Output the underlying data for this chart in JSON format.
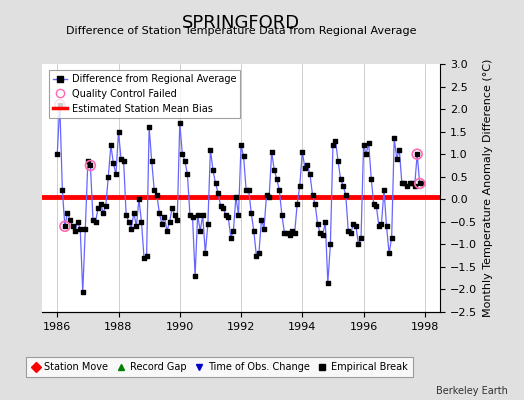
{
  "title": "SPRINGFORD",
  "subtitle": "Difference of Station Temperature Data from Regional Average",
  "ylabel": "Monthly Temperature Anomaly Difference (°C)",
  "xlabel_ticks": [
    1986,
    1988,
    1990,
    1992,
    1994,
    1996,
    1998
  ],
  "ylim": [
    -2.5,
    3.0
  ],
  "xlim": [
    1985.5,
    1998.5
  ],
  "bias": 0.05,
  "bias_color": "#ff0000",
  "line_color": "#6666ff",
  "marker_color": "#000000",
  "bg_color": "#e0e0e0",
  "plot_bg_color": "#ffffff",
  "grid_color": "#bbbbbb",
  "yticks": [
    -2.5,
    -2,
    -1.5,
    -1,
    -0.5,
    0,
    0.5,
    1,
    1.5,
    2,
    2.5,
    3
  ],
  "watermark": "Berkeley Earth",
  "data_x": [
    1986.0,
    1986.083,
    1986.167,
    1986.25,
    1986.333,
    1986.417,
    1986.5,
    1986.583,
    1986.667,
    1986.75,
    1986.833,
    1986.917,
    1987.0,
    1987.083,
    1987.167,
    1987.25,
    1987.333,
    1987.417,
    1987.5,
    1987.583,
    1987.667,
    1987.75,
    1987.833,
    1987.917,
    1988.0,
    1988.083,
    1988.167,
    1988.25,
    1988.333,
    1988.417,
    1988.5,
    1988.583,
    1988.667,
    1988.75,
    1988.833,
    1988.917,
    1989.0,
    1989.083,
    1989.167,
    1989.25,
    1989.333,
    1989.417,
    1989.5,
    1989.583,
    1989.667,
    1989.75,
    1989.833,
    1989.917,
    1990.0,
    1990.083,
    1990.167,
    1990.25,
    1990.333,
    1990.417,
    1990.5,
    1990.583,
    1990.667,
    1990.75,
    1990.833,
    1990.917,
    1991.0,
    1991.083,
    1991.167,
    1991.25,
    1991.333,
    1991.417,
    1991.5,
    1991.583,
    1991.667,
    1991.75,
    1991.833,
    1991.917,
    1992.0,
    1992.083,
    1992.167,
    1992.25,
    1992.333,
    1992.417,
    1992.5,
    1992.583,
    1992.667,
    1992.75,
    1992.833,
    1992.917,
    1993.0,
    1993.083,
    1993.167,
    1993.25,
    1993.333,
    1993.417,
    1993.5,
    1993.583,
    1993.667,
    1993.75,
    1993.833,
    1993.917,
    1994.0,
    1994.083,
    1994.167,
    1994.25,
    1994.333,
    1994.417,
    1994.5,
    1994.583,
    1994.667,
    1994.75,
    1994.833,
    1994.917,
    1995.0,
    1995.083,
    1995.167,
    1995.25,
    1995.333,
    1995.417,
    1995.5,
    1995.583,
    1995.667,
    1995.75,
    1995.833,
    1995.917,
    1996.0,
    1996.083,
    1996.167,
    1996.25,
    1996.333,
    1996.417,
    1996.5,
    1996.583,
    1996.667,
    1996.75,
    1996.833,
    1996.917,
    1997.0,
    1997.083,
    1997.167,
    1997.25,
    1997.333,
    1997.417,
    1997.5,
    1997.583,
    1997.667,
    1997.75,
    1997.833,
    1997.917
  ],
  "data_y": [
    1.0,
    2.1,
    0.2,
    -0.6,
    -0.3,
    -0.45,
    -0.6,
    -0.7,
    -0.5,
    -0.65,
    -2.05,
    -0.65,
    0.85,
    0.75,
    -0.45,
    -0.5,
    -0.2,
    -0.1,
    -0.3,
    -0.15,
    0.5,
    1.2,
    0.8,
    0.55,
    1.5,
    0.9,
    0.85,
    -0.35,
    -0.5,
    -0.65,
    -0.3,
    -0.6,
    0.0,
    -0.5,
    -1.3,
    -1.25,
    1.6,
    0.85,
    0.2,
    0.1,
    -0.3,
    -0.55,
    -0.4,
    -0.7,
    -0.5,
    -0.2,
    -0.35,
    -0.45,
    1.7,
    1.0,
    0.85,
    0.55,
    -0.35,
    -0.4,
    -1.7,
    -0.35,
    -0.7,
    -0.35,
    -1.2,
    -0.55,
    1.1,
    0.65,
    0.35,
    0.15,
    -0.15,
    -0.2,
    -0.35,
    -0.4,
    -0.85,
    -0.7,
    0.05,
    -0.35,
    1.2,
    0.95,
    0.2,
    0.2,
    -0.3,
    -0.7,
    -1.25,
    -1.2,
    -0.45,
    -0.65,
    0.1,
    0.05,
    1.05,
    0.65,
    0.45,
    0.2,
    -0.35,
    -0.75,
    -0.75,
    -0.8,
    -0.7,
    -0.75,
    -0.1,
    0.3,
    1.05,
    0.7,
    0.75,
    0.55,
    0.1,
    -0.1,
    -0.55,
    -0.75,
    -0.8,
    -0.5,
    -1.85,
    -1.0,
    1.2,
    1.3,
    0.85,
    0.45,
    0.3,
    0.1,
    -0.7,
    -0.75,
    -0.55,
    -0.6,
    -1.0,
    -0.85,
    1.2,
    1.0,
    1.25,
    0.45,
    -0.1,
    -0.15,
    -0.6,
    -0.55,
    0.2,
    -0.6,
    -1.2,
    -0.85,
    1.35,
    0.9,
    1.1,
    0.35,
    0.35,
    0.3,
    0.35,
    0.35,
    0.3,
    1.0,
    0.35,
    0.35
  ],
  "qc_x": [
    1986.083,
    1987.083,
    1986.25,
    1997.75,
    1997.833
  ],
  "qc_y": [
    2.1,
    0.75,
    -0.6,
    1.0,
    0.35
  ],
  "title_fontsize": 13,
  "subtitle_fontsize": 8,
  "axis_fontsize": 8,
  "tick_fontsize": 8
}
